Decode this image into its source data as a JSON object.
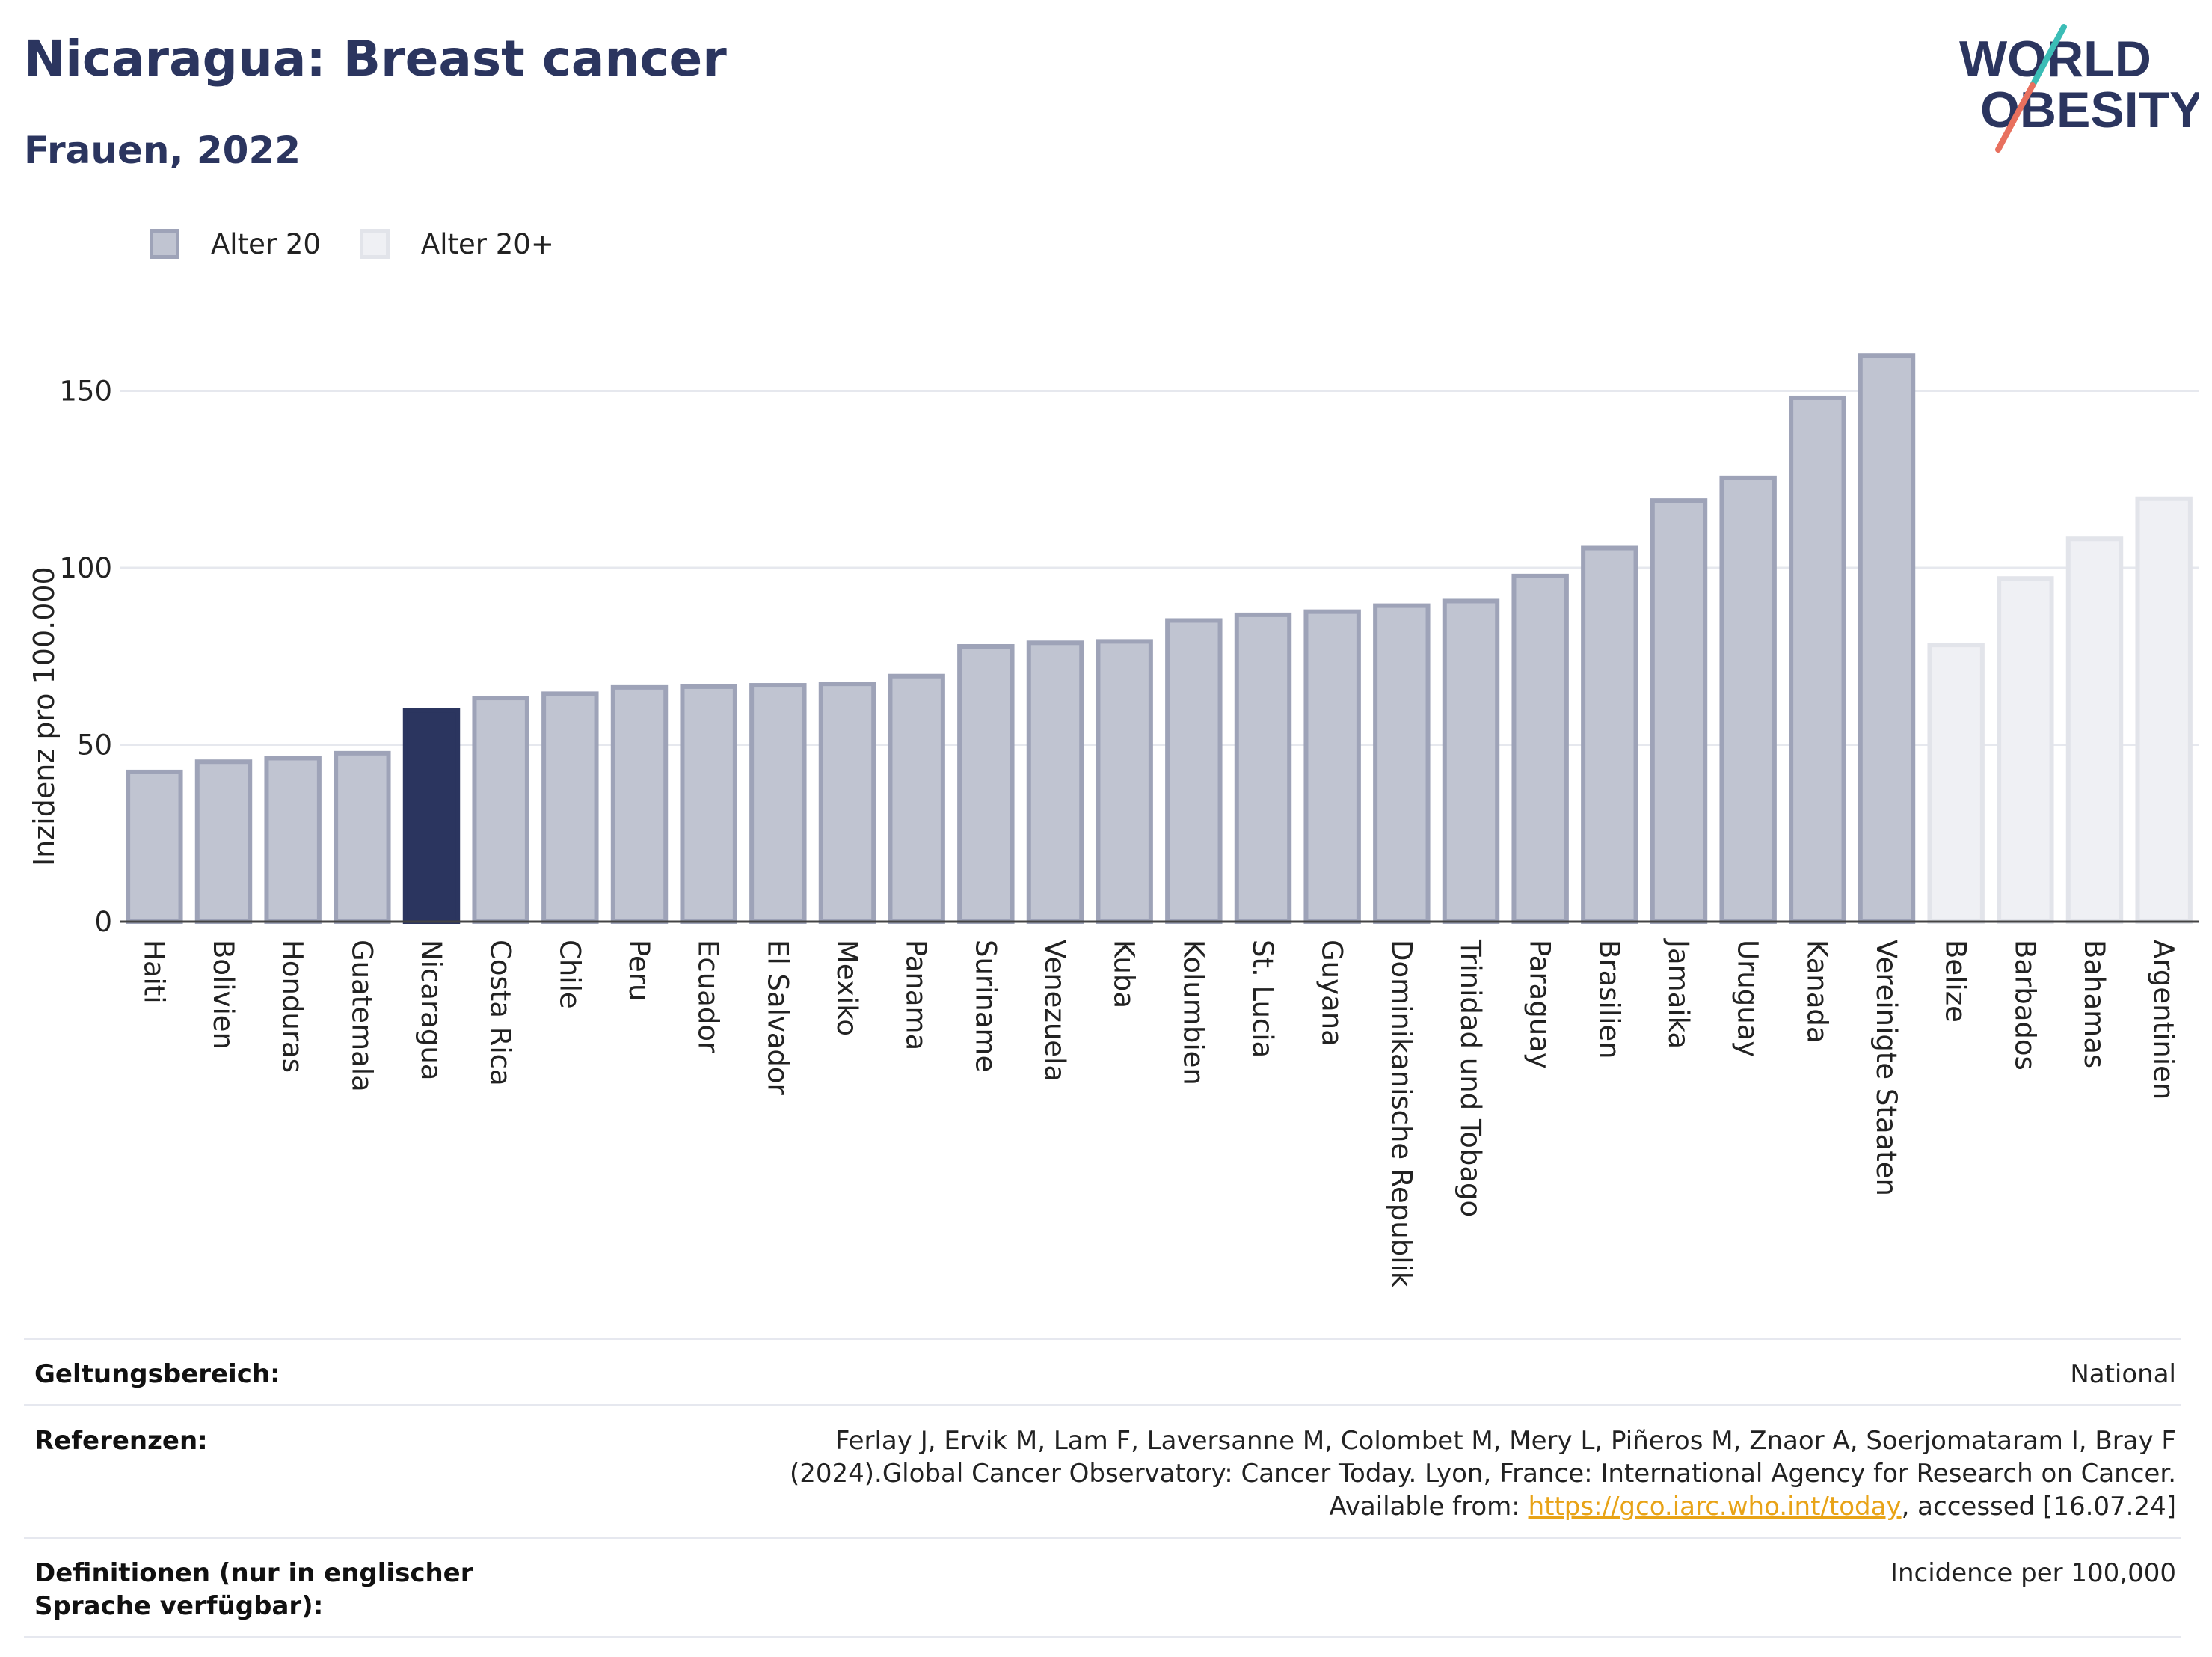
{
  "header": {
    "title": "Nicaragua: Breast cancer",
    "subtitle": "Frauen, 2022"
  },
  "logo": {
    "line1": "WORLD",
    "line2": "OBESITY",
    "icon": "slash-logo-icon",
    "colors": {
      "text": "#2b355f",
      "slash_top": "#3bbdb6",
      "slash_bottom": "#e8705e"
    }
  },
  "legend": [
    {
      "label": "Alter 20",
      "fill": "#c0c4d1",
      "stroke": "#9ea3b8"
    },
    {
      "label": "Alter 20+",
      "fill": "#eff0f4",
      "stroke": "#e2e4ea"
    }
  ],
  "chart_data": {
    "type": "bar",
    "title": "",
    "xlabel": "",
    "ylabel": "Inzidenz pro 100.000",
    "ylim": [
      0,
      170
    ],
    "yticks": [
      0,
      50,
      100,
      150
    ],
    "grid": true,
    "legend_position": "top-left",
    "highlight": "Nicaragua",
    "colors": {
      "alter20": "#c0c4d1",
      "alter20_stroke": "#9ea3b8",
      "alter20plus": "#eff0f4",
      "alter20plus_stroke": "#e2e4ea",
      "highlight": "#2b355f"
    },
    "categories": [
      "Haiti",
      "Bolivien",
      "Honduras",
      "Guatemala",
      "Nicaragua",
      "Costa Rica",
      "Chile",
      "Peru",
      "Ecuador",
      "El Salvador",
      "Mexiko",
      "Panama",
      "Suriname",
      "Venezuela",
      "Kuba",
      "Kolumbien",
      "St. Lucia",
      "Guyana",
      "Dominikanische Republik",
      "Trinidad und Tobago",
      "Paraguay",
      "Brasilien",
      "Jamaika",
      "Uruguay",
      "Kanada",
      "Vereinigte Staaten",
      "Belize",
      "Barbados",
      "Bahamas",
      "Argentinien"
    ],
    "series": [
      {
        "name": "Alter 20",
        "values": [
          42.3,
          45.2,
          46.2,
          47.6,
          59.8,
          63.2,
          64.4,
          66.2,
          66.4,
          66.8,
          67.2,
          69.4,
          77.8,
          78.8,
          79.2,
          85.1,
          86.7,
          87.6,
          89.3,
          90.6,
          97.7,
          105.6,
          119.0,
          125.4,
          148.0,
          160.0,
          null,
          null,
          null,
          null
        ]
      },
      {
        "name": "Alter 20+",
        "values": [
          null,
          null,
          null,
          null,
          null,
          null,
          null,
          null,
          null,
          null,
          null,
          null,
          null,
          null,
          null,
          null,
          null,
          null,
          null,
          null,
          null,
          null,
          null,
          null,
          null,
          null,
          78.2,
          97.0,
          108.2,
          119.5
        ]
      }
    ]
  },
  "info": {
    "rows": [
      {
        "key": "Geltungsbereich:",
        "value": "National"
      },
      {
        "key": "Referenzen:",
        "value_before": "Ferlay J, Ervik M, Lam F, Laversanne M, Colombet M, Mery L, Piñeros M, Znaor A, Soerjomataram I, Bray F (2024).Global Cancer Observatory: Cancer Today. Lyon, France: International Agency for Research on Cancer. Available from: ",
        "link": "https://gco.iarc.who.int/today",
        "value_after": ", accessed [16.07.24]"
      },
      {
        "key": "Definitionen (nur in englischer Sprache verfügbar):",
        "value": "Incidence per 100,000"
      }
    ]
  }
}
